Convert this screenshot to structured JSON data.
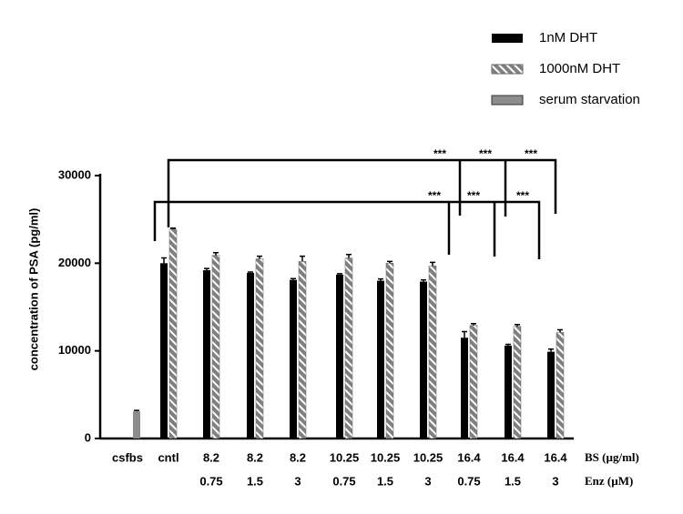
{
  "chart_data": {
    "type": "bar",
    "ylabel": "concentration of PSA (pg/ml)",
    "categories": [
      "csfbs",
      "cntl",
      "8.2",
      "8.2",
      "8.2",
      "10.25",
      "10.25",
      "10.25",
      "16.4",
      "16.4",
      "16.4"
    ],
    "categories_row2": [
      null,
      null,
      "0.75",
      "1.5",
      "3",
      "0.75",
      "1.5",
      "3",
      "0.75",
      "1.5",
      "3"
    ],
    "row_labels": [
      "BS (µg/ml)",
      "Enz (µM)"
    ],
    "series": [
      {
        "name": "1nM DHT",
        "color": "#000000",
        "values": [
          null,
          20000,
          19200,
          18900,
          18100,
          18700,
          18000,
          17900,
          11500,
          10600,
          9900
        ],
        "errors": [
          null,
          600,
          200,
          100,
          150,
          100,
          200,
          200,
          700,
          150,
          300
        ]
      },
      {
        "name": "1000nM DHT",
        "color": "#808080",
        "hatch": true,
        "values": [
          null,
          23900,
          20900,
          20500,
          20200,
          20600,
          20000,
          19700,
          12900,
          12800,
          12100
        ],
        "errors": [
          null,
          100,
          300,
          300,
          600,
          400,
          200,
          400,
          200,
          200,
          300
        ]
      },
      {
        "name": "serum starvation",
        "color": "#8c8c8c",
        "values": [
          3100,
          null,
          null,
          null,
          null,
          null,
          null,
          null,
          null,
          null,
          null
        ],
        "errors": [
          100,
          null,
          null,
          null,
          null,
          null,
          null,
          null,
          null,
          null,
          null
        ]
      }
    ],
    "annotations": [
      "***",
      "***",
      "***",
      "***",
      "***",
      "***"
    ],
    "ylim": [
      0,
      30000
    ],
    "yticks": [
      0,
      10000,
      20000,
      30000
    ]
  }
}
